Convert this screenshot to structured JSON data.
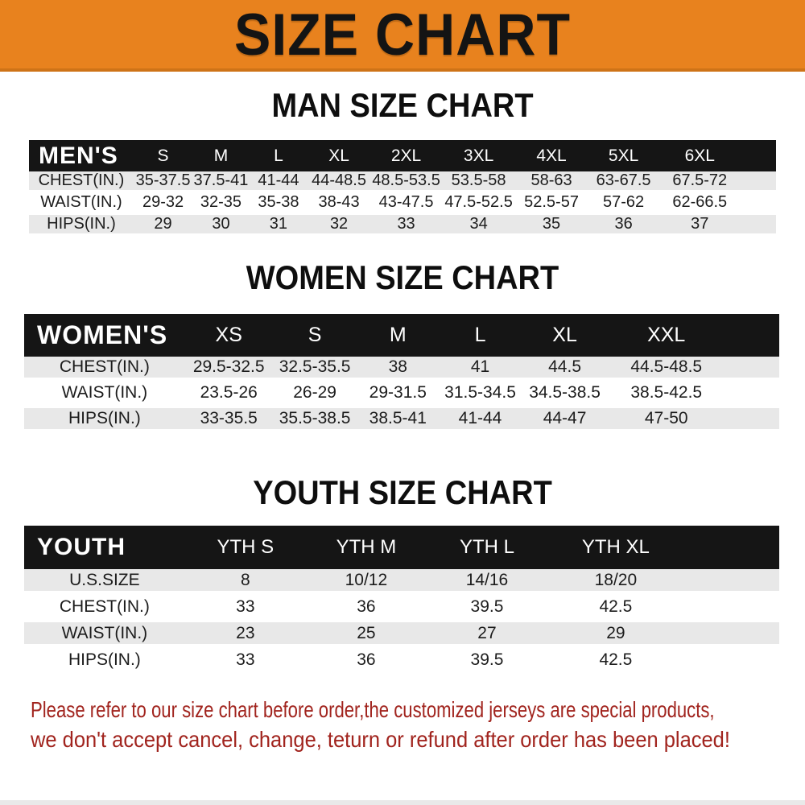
{
  "banner": {
    "title": "SIZE CHART"
  },
  "chart_data": [
    {
      "type": "table",
      "title": "MAN SIZE CHART",
      "header": [
        "MEN'S",
        "S",
        "M",
        "L",
        "XL",
        "2XL",
        "3XL",
        "4XL",
        "5XL",
        "6XL"
      ],
      "rows": [
        [
          "CHEST(IN.)",
          "35-37.5",
          "37.5-41",
          "41-44",
          "44-48.5",
          "48.5-53.5",
          "53.5-58",
          "58-63",
          "63-67.5",
          "67.5-72"
        ],
        [
          "WAIST(IN.)",
          "29-32",
          "32-35",
          "35-38",
          "38-43",
          "43-47.5",
          "47.5-52.5",
          "52.5-57",
          "57-62",
          "62-66.5"
        ],
        [
          "HIPS(IN.)",
          "29",
          "30",
          "31",
          "32",
          "33",
          "34",
          "35",
          "36",
          "37"
        ]
      ]
    },
    {
      "type": "table",
      "title": "WOMEN SIZE CHART",
      "header": [
        "WOMEN'S",
        "XS",
        "S",
        "M",
        "L",
        "XL",
        "XXL"
      ],
      "rows": [
        [
          "CHEST(IN.)",
          "29.5-32.5",
          "32.5-35.5",
          "38",
          "41",
          "44.5",
          "44.5-48.5"
        ],
        [
          "WAIST(IN.)",
          "23.5-26",
          "26-29",
          "29-31.5",
          "31.5-34.5",
          "34.5-38.5",
          "38.5-42.5"
        ],
        [
          "HIPS(IN.)",
          "33-35.5",
          "35.5-38.5",
          "38.5-41",
          "41-44",
          "44-47",
          "47-50"
        ]
      ]
    },
    {
      "type": "table",
      "title": "YOUTH SIZE CHART",
      "header": [
        "YOUTH",
        "YTH S",
        "YTH M",
        "YTH L",
        "YTH XL"
      ],
      "rows": [
        [
          "U.S.SIZE",
          "8",
          "10/12",
          "14/16",
          "18/20"
        ],
        [
          "CHEST(IN.)",
          "33",
          "36",
          "39.5",
          "42.5"
        ],
        [
          "WAIST(IN.)",
          "23",
          "25",
          "27",
          "29"
        ],
        [
          "HIPS(IN.)",
          "33",
          "36",
          "39.5",
          "42.5"
        ]
      ]
    }
  ],
  "footnote": {
    "lines": [
      "Please refer to our size chart before order,the customized jerseys are special products,",
      "we don't accept cancel, change, teturn or refund after order has been placed!"
    ]
  },
  "colors": {
    "banner_orange": "#E8821E",
    "banner_border": "#CE7317",
    "header_black": "#151515",
    "row_gray": "#E8E8E8",
    "note_red": "#A1241E"
  }
}
